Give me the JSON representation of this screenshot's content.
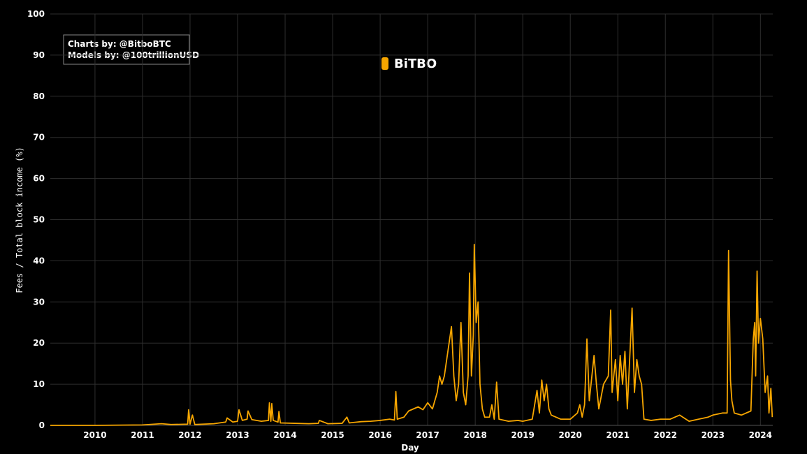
{
  "chart_data": {
    "type": "line",
    "x_label": "Day",
    "y_label": "Fees / Total block income (%)",
    "annotations": [
      "Charts by: @BitboBTC",
      "Models by: @100trillionUSD"
    ],
    "logo": "BiTBO",
    "xlim": [
      2009.06,
      2024.26
    ],
    "ylim": [
      0,
      100
    ],
    "xticks": [
      2010,
      2011,
      2012,
      2013,
      2014,
      2015,
      2016,
      2017,
      2018,
      2019,
      2020,
      2021,
      2022,
      2023,
      2024
    ],
    "yticks": [
      0,
      10,
      20,
      30,
      40,
      50,
      60,
      70,
      80,
      90,
      100
    ],
    "grid": true,
    "series": [
      {
        "name": "Fees / Total block income",
        "color": "#f7a600",
        "x": [
          2009.06,
          2010,
          2011,
          2011.4,
          2011.6,
          2011.95,
          2011.97,
          2012.0,
          2012.05,
          2012.1,
          2012.5,
          2012.75,
          2012.78,
          2012.9,
          2013.0,
          2013.03,
          2013.1,
          2013.2,
          2013.22,
          2013.3,
          2013.5,
          2013.65,
          2013.67,
          2013.7,
          2013.72,
          2013.75,
          2013.85,
          2013.87,
          2013.9,
          2014.2,
          2014.5,
          2014.7,
          2014.72,
          2014.9,
          2015.2,
          2015.3,
          2015.35,
          2015.6,
          2015.8,
          2016.0,
          2016.2,
          2016.3,
          2016.33,
          2016.36,
          2016.5,
          2016.6,
          2016.8,
          2016.9,
          2017.0,
          2017.1,
          2017.2,
          2017.25,
          2017.3,
          2017.35,
          2017.45,
          2017.5,
          2017.55,
          2017.6,
          2017.65,
          2017.7,
          2017.75,
          2017.8,
          2017.85,
          2017.88,
          2017.92,
          2017.96,
          2017.98,
          2018.02,
          2018.06,
          2018.1,
          2018.15,
          2018.2,
          2018.3,
          2018.35,
          2018.4,
          2018.45,
          2018.5,
          2018.7,
          2018.9,
          2019.0,
          2019.2,
          2019.3,
          2019.35,
          2019.4,
          2019.45,
          2019.5,
          2019.55,
          2019.6,
          2019.8,
          2020.0,
          2020.15,
          2020.2,
          2020.25,
          2020.3,
          2020.35,
          2020.4,
          2020.5,
          2020.55,
          2020.6,
          2020.7,
          2020.8,
          2020.85,
          2020.88,
          2020.95,
          2021.0,
          2021.05,
          2021.1,
          2021.15,
          2021.2,
          2021.3,
          2021.35,
          2021.4,
          2021.45,
          2021.5,
          2021.55,
          2021.7,
          2021.9,
          2022.1,
          2022.3,
          2022.5,
          2022.7,
          2022.9,
          2023.0,
          2023.2,
          2023.3,
          2023.33,
          2023.37,
          2023.4,
          2023.45,
          2023.6,
          2023.8,
          2023.85,
          2023.88,
          2023.9,
          2023.93,
          2023.96,
          2024.0,
          2024.05,
          2024.1,
          2024.15,
          2024.18,
          2024.22,
          2024.25
        ],
        "values": [
          0,
          0,
          0.1,
          0.4,
          0.2,
          0.3,
          3.8,
          0.3,
          2.5,
          0.2,
          0.4,
          0.8,
          1.8,
          0.8,
          1.0,
          3.8,
          1.2,
          1.5,
          3.5,
          1.4,
          1.0,
          1.2,
          5.5,
          1.0,
          5.3,
          1.2,
          0.8,
          3.4,
          0.6,
          0.5,
          0.4,
          0.5,
          1.2,
          0.4,
          0.5,
          2.0,
          0.6,
          0.9,
          1.0,
          1.2,
          1.5,
          1.3,
          8.2,
          1.5,
          2.0,
          3.5,
          4.5,
          3.8,
          5.5,
          4.0,
          8.0,
          12,
          10,
          12,
          20,
          24,
          12,
          6,
          10,
          25,
          8,
          5,
          12,
          37,
          12,
          22,
          44,
          25,
          30,
          10,
          4,
          2,
          2,
          5,
          1.5,
          10.5,
          1.5,
          1.0,
          1.2,
          1.0,
          1.5,
          8.5,
          3,
          11,
          6,
          10,
          4,
          2.5,
          1.5,
          1.5,
          3,
          5,
          2,
          5,
          21,
          6,
          17,
          10,
          4,
          10,
          12,
          28,
          8,
          16,
          6,
          17,
          10,
          18,
          4,
          28.5,
          8,
          16,
          12,
          10,
          1.5,
          1.2,
          1.5,
          1.5,
          2.5,
          1.0,
          1.5,
          2.0,
          2.5,
          3.0,
          3,
          42.5,
          11,
          6,
          3,
          2.5,
          3.5,
          21,
          25,
          12,
          37.5,
          20,
          26,
          21,
          8,
          12,
          3,
          9,
          2
        ]
      }
    ]
  }
}
